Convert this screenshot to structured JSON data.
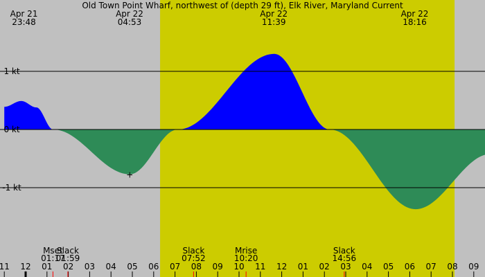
{
  "colors": {
    "background": "#c0c0c0",
    "daylight": "#cccc00",
    "flood": "#0000ff",
    "ebb": "#2e8b57",
    "line": "#000000",
    "moon_tick": "#ff0000"
  },
  "chart_data": {
    "type": "area",
    "title": "Old Town Point Wharf, northwest of (depth 29 ft), Elk River, Maryland Current",
    "units": "kt",
    "x_range_hours": [
      -1.0,
      21.8
    ],
    "ylim": [
      -2.2,
      2.25
    ],
    "y_ticks": [
      {
        "value": 1,
        "label": "1 kt"
      },
      {
        "value": 0,
        "label": "0 kt"
      },
      {
        "value": -1,
        "label": "-1 kt"
      }
    ],
    "x_ticks": [
      {
        "hour": -1,
        "label": "11"
      },
      {
        "hour": 0,
        "label": "12"
      },
      {
        "hour": 1,
        "label": "01"
      },
      {
        "hour": 2,
        "label": "02"
      },
      {
        "hour": 3,
        "label": "03"
      },
      {
        "hour": 4,
        "label": "04"
      },
      {
        "hour": 5,
        "label": "05"
      },
      {
        "hour": 6,
        "label": "06"
      },
      {
        "hour": 7,
        "label": "07"
      },
      {
        "hour": 8,
        "label": "08"
      },
      {
        "hour": 9,
        "label": "09"
      },
      {
        "hour": 10,
        "label": "10"
      },
      {
        "hour": 11,
        "label": "11"
      },
      {
        "hour": 12,
        "label": "12"
      },
      {
        "hour": 13,
        "label": "01"
      },
      {
        "hour": 14,
        "label": "02"
      },
      {
        "hour": 15,
        "label": "03"
      },
      {
        "hour": 16,
        "label": "04"
      },
      {
        "hour": 17,
        "label": "05"
      },
      {
        "hour": 18,
        "label": "06"
      },
      {
        "hour": 19,
        "label": "07"
      },
      {
        "hour": 20,
        "label": "08"
      },
      {
        "hour": 21,
        "label": "09"
      }
    ],
    "daylight_hours": [
      6.3,
      20.1
    ],
    "series": [
      {
        "type": "flood",
        "points": [
          {
            "hour": -1.0,
            "kt": 0.39
          },
          {
            "hour": -0.2,
            "kt": 0.49
          },
          {
            "hour": 0.5,
            "kt": 0.38
          },
          {
            "hour": 1.29,
            "kt": 0.0
          }
        ]
      },
      {
        "type": "ebb",
        "points": [
          {
            "hour": 1.29,
            "kt": 0.0
          },
          {
            "hour": 4.88,
            "kt": -0.77
          },
          {
            "hour": 7.13,
            "kt": 0.0
          }
        ]
      },
      {
        "type": "flood",
        "points": [
          {
            "hour": 7.13,
            "kt": 0.0
          },
          {
            "hour": 11.65,
            "kt": 1.3
          },
          {
            "hour": 14.25,
            "kt": 0.0
          }
        ]
      },
      {
        "type": "ebb",
        "points": [
          {
            "hour": 14.25,
            "kt": 0.0
          },
          {
            "hour": 18.27,
            "kt": -1.37
          },
          {
            "hour": 21.8,
            "kt": -0.42
          }
        ]
      }
    ],
    "peak_labels": [
      {
        "hour": 0.05,
        "date": "Apr 21",
        "time": "23:48"
      },
      {
        "hour": 5.0,
        "date": "Apr 22",
        "time": "04:53"
      },
      {
        "hour": 11.76,
        "date": "Apr 22",
        "time": "11:39"
      },
      {
        "hour": 18.36,
        "date": "Apr 22",
        "time": "18:16"
      }
    ],
    "events": [
      {
        "hour": 1.28,
        "label": "Mset",
        "time": "01:17",
        "moon": true
      },
      {
        "hour": 1.98,
        "label": "Slack",
        "time": "01:59",
        "moon": false
      },
      {
        "hour": 7.87,
        "label": "Slack",
        "time": "07:52",
        "moon": false
      },
      {
        "hour": 10.33,
        "label": "Mrise",
        "time": "10:20",
        "moon": true
      },
      {
        "hour": 14.93,
        "label": "Slack",
        "time": "14:56",
        "moon": false
      }
    ],
    "marker": {
      "hour": 4.88,
      "kt": -0.77,
      "symbol": "+"
    }
  }
}
